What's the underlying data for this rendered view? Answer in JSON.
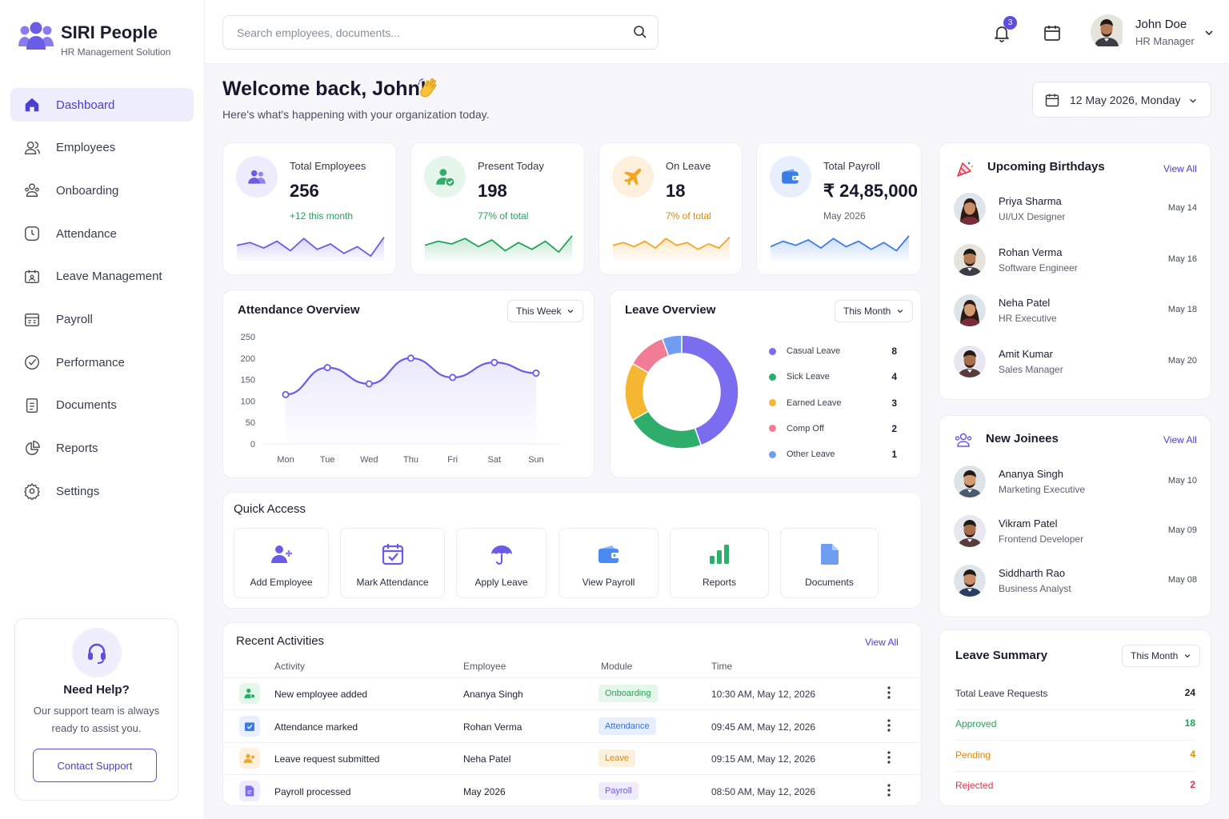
{
  "brand": {
    "name": "SIRI People",
    "tagline": "HR Management Solution"
  },
  "sidebar": {
    "items": [
      {
        "label": "Dashboard",
        "icon": "home-icon",
        "active": true
      },
      {
        "label": "Employees",
        "icon": "users-icon"
      },
      {
        "label": "Onboarding",
        "icon": "user-plus-icon"
      },
      {
        "label": "Attendance",
        "icon": "clock-icon"
      },
      {
        "label": "Leave Management",
        "icon": "calendar-user-icon"
      },
      {
        "label": "Payroll",
        "icon": "payroll-icon"
      },
      {
        "label": "Performance",
        "icon": "check-badge-icon"
      },
      {
        "label": "Documents",
        "icon": "document-icon"
      },
      {
        "label": "Reports",
        "icon": "pie-chart-icon"
      },
      {
        "label": "Settings",
        "icon": "gear-icon"
      }
    ]
  },
  "help": {
    "title": "Need Help?",
    "text": "Our support team is always ready to assist you.",
    "button": "Contact Support"
  },
  "header": {
    "search_placeholder": "Search employees, documents...",
    "notifications": "3",
    "user": {
      "name": "John Doe",
      "role": "HR Manager"
    }
  },
  "welcome": {
    "title": "Welcome back, John!",
    "subtitle": "Here's what's happening with your organization today.",
    "date": "12 May 2026, Monday"
  },
  "stats": [
    {
      "label": "Total Employees",
      "value": "256",
      "sub": "+12 this month",
      "color": "#6b5ce7",
      "sub_color": "#22a35a",
      "spark": [
        14,
        12,
        16,
        11,
        18,
        9,
        17,
        13,
        20,
        15,
        22,
        8
      ]
    },
    {
      "label": "Present Today",
      "value": "198",
      "sub": "77% of total",
      "color": "#22a35a",
      "sub_color": "#22a35a",
      "spark": [
        14,
        11,
        13,
        9,
        15,
        10,
        18,
        12,
        17,
        11,
        19,
        7
      ]
    },
    {
      "label": "On Leave",
      "value": "18",
      "sub": "7% of total",
      "color": "#f5a524",
      "sub_color": "#e08a00",
      "spark": [
        14,
        12,
        15,
        11,
        16,
        9,
        14,
        12,
        17,
        13,
        16,
        8
      ]
    },
    {
      "label": "Total Payroll",
      "value": "₹ 24,85,000",
      "sub": "May 2026",
      "color": "#3b7de8",
      "sub_color": "#5d6070",
      "spark": [
        15,
        11,
        14,
        10,
        16,
        9,
        15,
        11,
        17,
        12,
        18,
        7
      ]
    }
  ],
  "attendance": {
    "title": "Attendance Overview",
    "range": "This Week"
  },
  "leave": {
    "title": "Leave Overview",
    "range": "This Month",
    "items": [
      {
        "label": "Casual Leave",
        "value": 8,
        "color": "#7b6cf0"
      },
      {
        "label": "Sick Leave",
        "value": 4,
        "color": "#2fae6b"
      },
      {
        "label": "Earned Leave",
        "value": 3,
        "color": "#f5b731"
      },
      {
        "label": "Comp Off",
        "value": 2,
        "color": "#f27c95"
      },
      {
        "label": "Other Leave",
        "value": 1,
        "color": "#6f9df1"
      }
    ]
  },
  "chart_data": [
    {
      "type": "line",
      "categories": [
        "Mon",
        "Tue",
        "Wed",
        "Thu",
        "Fri",
        "Sat",
        "Sun"
      ],
      "series": [
        {
          "values": [
            115,
            178,
            140,
            200,
            155,
            190,
            165
          ]
        }
      ],
      "ylim": [
        0,
        250
      ],
      "yticks": [
        0,
        50,
        100,
        150,
        200,
        250
      ],
      "grid": false,
      "color": "#6b5ce7"
    },
    {
      "type": "pie",
      "categories": [
        "Casual Leave",
        "Sick Leave",
        "Earned Leave",
        "Comp Off",
        "Other Leave"
      ],
      "values": [
        8,
        4,
        3,
        2,
        1
      ],
      "donut": true
    }
  ],
  "quick_access": {
    "title": "Quick Access",
    "items": [
      {
        "label": "Add Employee",
        "icon": "add-user-icon"
      },
      {
        "label": "Mark Attendance",
        "icon": "calendar-check-icon"
      },
      {
        "label": "Apply Leave",
        "icon": "umbrella-icon"
      },
      {
        "label": "View Payroll",
        "icon": "wallet-icon"
      },
      {
        "label": "Reports",
        "icon": "bar-chart-icon"
      },
      {
        "label": "Documents",
        "icon": "file-icon"
      }
    ]
  },
  "activities": {
    "title": "Recent Activities",
    "view_all": "View All",
    "columns": {
      "activity": "Activity",
      "employee": "Employee",
      "module": "Module",
      "time": "Time"
    },
    "rows": [
      {
        "activity": "New employee added",
        "employee": "Ananya Singh",
        "module": "Onboarding",
        "time": "10:30 AM, May 12, 2026",
        "mod_bg": "#e5f6ea",
        "mod_fg": "#22a35a",
        "ic_bg": "#e5f6ea",
        "ic": "#2fae6b"
      },
      {
        "activity": "Attendance marked",
        "employee": "Rohan Verma",
        "module": "Attendance",
        "time": "09:45 AM, May 12, 2026",
        "mod_bg": "#e7effd",
        "mod_fg": "#3b6fd8",
        "ic_bg": "#e7effd",
        "ic": "#3b7de8"
      },
      {
        "activity": "Leave request submitted",
        "employee": "Neha Patel",
        "module": "Leave",
        "time": "09:15 AM, May 12, 2026",
        "mod_bg": "#fdf1de",
        "mod_fg": "#e08a00",
        "ic_bg": "#fdf1de",
        "ic": "#f5a524"
      },
      {
        "activity": "Payroll processed",
        "employee": "May 2026",
        "module": "Payroll",
        "time": "08:50 AM, May 12, 2026",
        "mod_bg": "#efebfc",
        "mod_fg": "#6b5ce7",
        "ic_bg": "#efebfc",
        "ic": "#7b6cf0"
      }
    ]
  },
  "birthdays": {
    "title": "Upcoming Birthdays",
    "view_all": "View All",
    "people": [
      {
        "name": "Priya Sharma",
        "role": "UI/UX Designer",
        "date": "May 14",
        "gender": "f"
      },
      {
        "name": "Rohan Verma",
        "role": "Software Engineer",
        "date": "May 16",
        "gender": "m"
      },
      {
        "name": "Neha Patel",
        "role": "HR Executive",
        "date": "May 18",
        "gender": "f"
      },
      {
        "name": "Amit Kumar",
        "role": "Sales Manager",
        "date": "May 20",
        "gender": "m"
      }
    ]
  },
  "joinees": {
    "title": "New Joinees",
    "view_all": "View All",
    "people": [
      {
        "name": "Ananya Singh",
        "role": "Marketing Executive",
        "date": "May 10",
        "gender": "m"
      },
      {
        "name": "Vikram Patel",
        "role": "Frontend Developer",
        "date": "May 09",
        "gender": "m"
      },
      {
        "name": "Siddharth Rao",
        "role": "Business Analyst",
        "date": "May 08",
        "gender": "m"
      }
    ]
  },
  "leave_summary": {
    "title": "Leave Summary",
    "range": "This Month",
    "rows": [
      {
        "label": "Total Leave Requests",
        "value": "24",
        "color": "#33364a"
      },
      {
        "label": "Approved",
        "value": "18",
        "color": "#22a35a"
      },
      {
        "label": "Pending",
        "value": "4",
        "color": "#e08a00"
      },
      {
        "label": "Rejected",
        "value": "2",
        "color": "#e0344a"
      }
    ]
  }
}
